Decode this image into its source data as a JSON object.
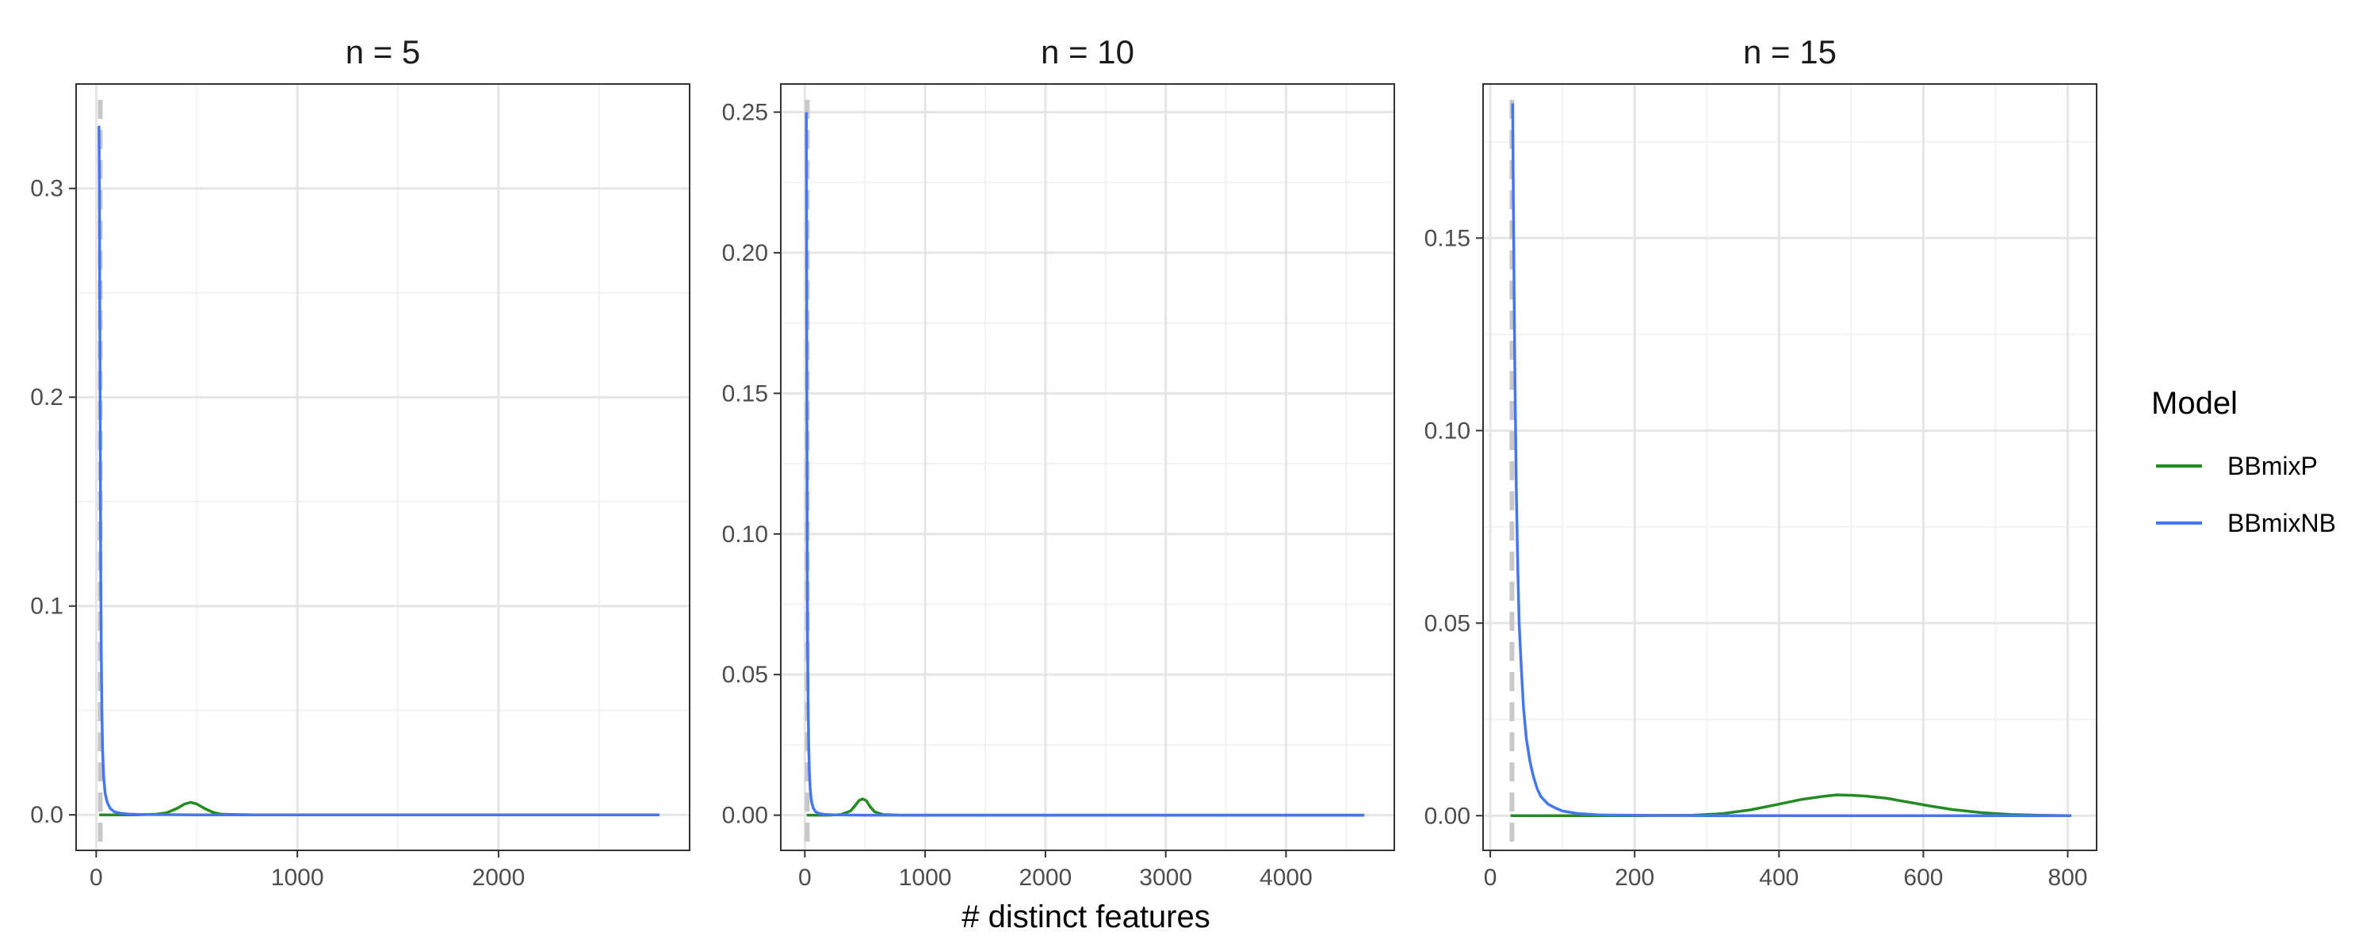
{
  "chart_data": {
    "type": "line",
    "xlabel": "# distinct features",
    "ylabel": "",
    "legend": {
      "title": "Model",
      "position": "right",
      "entries": [
        {
          "name": "BBmixP",
          "color": "#228B22"
        },
        {
          "name": "BBmixNB",
          "color": "#4477EE"
        }
      ]
    },
    "reference_line": {
      "style": "dashed",
      "color": "#C8C8C8",
      "orientation": "vertical"
    },
    "grid": true,
    "panels": [
      {
        "strip": "n =  5",
        "xlim": [
          -100,
          2950
        ],
        "ylim": [
          -0.017,
          0.35
        ],
        "xticks": [
          0,
          1000,
          2000
        ],
        "xticklabels": [
          "0",
          "1000",
          "2000"
        ],
        "yticks": [
          0.0,
          0.1,
          0.2,
          0.3
        ],
        "yticklabels": [
          "0.0",
          "0.1",
          "0.2",
          "0.3"
        ],
        "vline_x": 20,
        "series": [
          {
            "name": "BBmixP",
            "x": [
              15,
              100,
              200,
              300,
              350,
              400,
              440,
              470,
              500,
              540,
              580,
              620,
              700,
              800,
              2800
            ],
            "y": [
              0,
              0,
              0,
              0.0003,
              0.001,
              0.003,
              0.0052,
              0.006,
              0.0052,
              0.003,
              0.0012,
              0.0003,
              0.0001,
              0,
              0
            ]
          },
          {
            "name": "BBmixNB",
            "x": [
              14,
              16,
              18,
              20,
              22,
              25,
              28,
              32,
              37,
              45,
              55,
              70,
              90,
              120,
              160,
              220,
              300,
              500,
              1000,
              2000,
              2800
            ],
            "y": [
              0.33,
              0.3,
              0.24,
              0.18,
              0.12,
              0.08,
              0.05,
              0.03,
              0.018,
              0.01,
              0.006,
              0.003,
              0.0015,
              0.0008,
              0.0004,
              0.0002,
              0.0001,
              0,
              0,
              0,
              0
            ]
          }
        ]
      },
      {
        "strip": "n =  10",
        "xlim": [
          -200,
          4900
        ],
        "ylim": [
          -0.0125,
          0.26
        ],
        "xticks": [
          0,
          1000,
          2000,
          3000,
          4000
        ],
        "xticklabels": [
          "0",
          "1000",
          "2000",
          "3000",
          "4000"
        ],
        "yticks": [
          0.0,
          0.05,
          0.1,
          0.15,
          0.2,
          0.25
        ],
        "yticklabels": [
          "0.00",
          "0.05",
          "0.10",
          "0.15",
          "0.20",
          "0.25"
        ],
        "vline_x": 20,
        "series": [
          {
            "name": "BBmixP",
            "x": [
              15,
              100,
              200,
              300,
              380,
              420,
              450,
              480,
              510,
              540,
              580,
              650,
              800,
              4650
            ],
            "y": [
              0,
              0,
              0,
              0.0002,
              0.0015,
              0.0035,
              0.0052,
              0.0058,
              0.0052,
              0.0032,
              0.0012,
              0.0002,
              0,
              0
            ]
          },
          {
            "name": "BBmixNB",
            "x": [
              12,
              14,
              16,
              18,
              20,
              23,
              27,
              32,
              38,
              45,
              55,
              70,
              90,
              120,
              160,
              250,
              500,
              1000,
              2500,
              4650
            ],
            "y": [
              0.25,
              0.22,
              0.17,
              0.13,
              0.09,
              0.06,
              0.04,
              0.025,
              0.015,
              0.009,
              0.005,
              0.0025,
              0.0012,
              0.0006,
              0.0003,
              0.0001,
              0,
              0,
              0,
              0
            ]
          }
        ]
      },
      {
        "strip": "n =  15",
        "xlim": [
          -10,
          840
        ],
        "ylim": [
          -0.009,
          0.19
        ],
        "xticks": [
          0,
          200,
          400,
          600,
          800
        ],
        "xticklabels": [
          "0",
          "200",
          "400",
          "600",
          "800"
        ],
        "yticks": [
          0.0,
          0.05,
          0.1,
          0.15
        ],
        "yticklabels": [
          "0.00",
          "0.05",
          "0.10",
          "0.15"
        ],
        "vline_x": 30,
        "series": [
          {
            "name": "BBmixP",
            "x": [
              28,
              100,
              200,
              280,
              320,
              360,
              400,
              430,
              460,
              480,
              500,
              520,
              550,
              580,
              610,
              640,
              680,
              720,
              760,
              805
            ],
            "y": [
              0,
              0,
              0,
              0.0001,
              0.0005,
              0.0015,
              0.003,
              0.0042,
              0.005,
              0.0054,
              0.0053,
              0.0051,
              0.0045,
              0.0035,
              0.0025,
              0.0016,
              0.0008,
              0.0003,
              0.0001,
              0
            ]
          },
          {
            "name": "BBmixNB",
            "x": [
              31,
              32,
              33,
              34,
              35,
              36,
              38,
              40,
              43,
              46,
              50,
              55,
              60,
              65,
              70,
              80,
              90,
              100,
              120,
              150,
              200,
              300,
              500,
              805
            ],
            "y": [
              0.185,
              0.16,
              0.135,
              0.115,
              0.1,
              0.085,
              0.065,
              0.05,
              0.038,
              0.028,
              0.02,
              0.014,
              0.01,
              0.007,
              0.005,
              0.003,
              0.002,
              0.0012,
              0.0006,
              0.0002,
              0.0001,
              0,
              0,
              0
            ]
          }
        ]
      }
    ]
  }
}
